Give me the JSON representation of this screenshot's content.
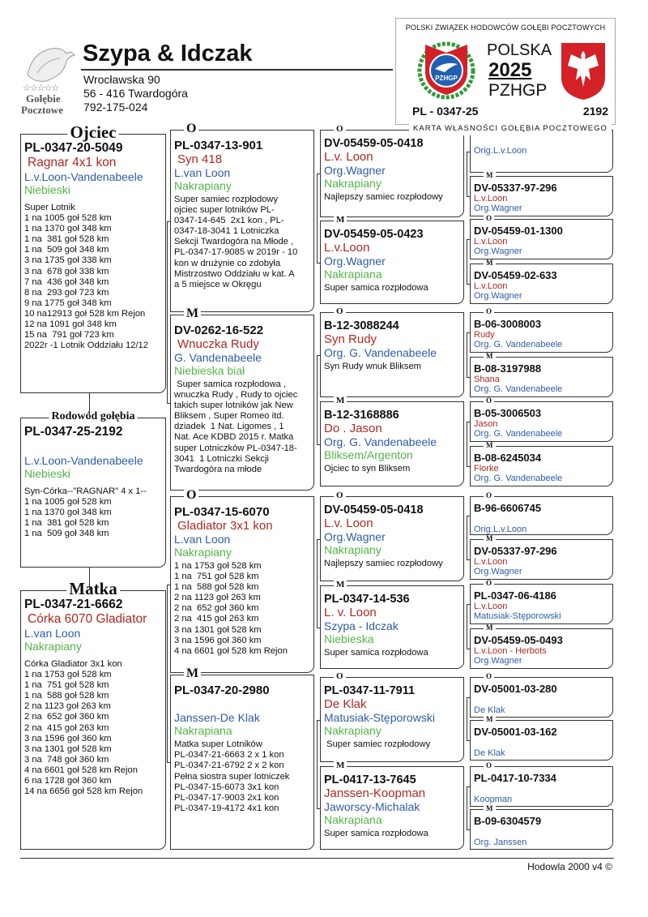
{
  "header": {
    "logo": {
      "stars": "☆☆☆☆☆",
      "line1": "Gołębie",
      "line2": "Pocztowe"
    },
    "title": "Szypa & Idczak",
    "address": [
      "Wrocławska 90",
      "56 - 416  Twardogóra",
      "792-175-024"
    ]
  },
  "card": {
    "org": "POLSKI ZWIĄZEK HODOWCÓW GOŁĘBI POCZTOWYCH",
    "country": "POLSKA",
    "year": "2025",
    "org_short": "PZHGP",
    "emblem": "PZHGP",
    "ring": "PL - 0347-25",
    "number": "2192",
    "caption": "KARTA WŁASNOŚCI GOŁĘBIA POCZTOWEGO"
  },
  "pedigree": [
    {
      "label": "Ojciec",
      "ring": "PL-0347-20-5049",
      "name": "Ragnar  4x1 kon",
      "strain": "L.v.Loon-Vandenabeele",
      "color": "Niebieski",
      "notes": [
        "Super Lotnik",
        "1 na 1005 goł 528 km",
        "1 na 1370 goł 348 km",
        "1 na  381 goł 528 km",
        "1 na  509 goł 348 km",
        "3 na 1735 goł 338 km",
        "3 na  678 goł 338 km",
        "7 na  436 goł 348 km",
        "8 na  293 goł 723 km",
        "9 na 1775 goł 348 km",
        "10 na12913 goł 528 km Rejon",
        "12 na 1091 goł 348 km",
        "15 na  791 goł 723 km",
        "2022r -1 Lotnik Oddziału 12/12"
      ]
    },
    {
      "label": "Rodowód gołębia",
      "ring": "PL-0347-25-2192",
      "strain": "L.v.Loon-Vandenabeele",
      "color": "Niebieski",
      "notes": [
        "Syn-Córka--\"RAGNAR\" 4 x 1--",
        "1 na 1005 goł 528 km",
        "1 na 1370 goł 348 km",
        "1 na  381 goł 528 km",
        "1 na  509 goł 348 km"
      ]
    },
    {
      "label": "Matka",
      "ring": "PL-0347-21-6662",
      "name": "Córka 6070 Gladiator",
      "strain": "L.van Loon",
      "color": "Nakrapiany",
      "notes": [
        "Córka Gladiator 3x1 kon",
        "1 na 1753 goł 528 km",
        "1 na  751 goł 528 km",
        "1 na  588 goł 528 km",
        "2 na 1123 goł 263 km",
        "2 na  652 goł 360 km",
        "2 na  415 goł 263 km",
        "3 na 1596 goł 360 km",
        "3 na 1301 goł 528 km",
        "3 na  748 goł 360 km",
        "4 na 6601 goł 528 km Rejon",
        "6 na 1728 goł 360 km",
        "14 na 6656 goł 528 km Rejon"
      ]
    },
    {
      "label": "O",
      "ring": "PL-0347-13-901",
      "name": "Syn 418",
      "strain": "L.van Loon",
      "color": "Nakrapiany",
      "notes": [
        "Super samiec rozpłodowy",
        "ojciec super lotników PL-",
        "0347-14-645  2x1 kon , PL-",
        "0347-18-3041 1 Lotniczka",
        "Sekcji Twardogóra na Młode ,",
        "PL-0347-17-9085 w 2019r - 10",
        "kon w drużynie co zdobyła",
        "Mistrzostwo Oddziału w kat. A",
        "a 5 miejsce w Okręgu"
      ]
    },
    {
      "label": "M",
      "ring": "DV-0262-16-522",
      "name": "Wnuczka Rudy",
      "strain": "G. Vandenabeele",
      "color": "Niebieska biał",
      "notes": [
        " Super samica rozpłodowa ,",
        "wnuczka Rudy , Rudy to ojciec",
        "takich super lotników jak New",
        "Bliksem , Super Romeo itd.",
        "dziadek  1 Nat. Ligomes , 1",
        "Nat. Ace KDBD 2015 r. Matka",
        "super Lotniczków PL-0347-18-",
        "3041  1 Lotniczki Sekcji",
        "Twardogóra na młode"
      ]
    },
    {
      "label": "O",
      "ring": "PL-0347-15-6070",
      "name": "Gladiator 3x1 kon",
      "strain": "L.van Loon",
      "color": "Nakrapiany",
      "notes": [
        "1 na 1753 goł 528 km",
        "1 na  751 goł 528 km",
        "1 na  588 goł 528 km",
        "2 na 1123 goł 263 km",
        "2 na  652 goł 360 km",
        "2 na  415 goł 263 km",
        "3 na 1301 goł 528 km",
        "3 na 1596 goł 360 km",
        "4 na 6601 goł 528 km Rejon"
      ]
    },
    {
      "label": "M",
      "ring": "PL-0347-20-2980",
      "strain": "Janssen-De Klak",
      "color": "Nakrapiana",
      "notes": [
        "Matka super Lotników",
        "PL-0347-21-6663 2 x 1 kon",
        "PL-0347-21-6792 2 x 2 kon",
        "Pełna siostra super lotniczek",
        "PL-0347-15-6073 3x1 kon",
        "PL-0347-17-9003 2x1 kon",
        "PL-0347-19-4172 4x1 kon"
      ]
    },
    {
      "label": "O",
      "ring": "DV-05459-05-0418",
      "name": "L.v. Loon",
      "strain": "Org.Wagner",
      "color": "Nakrapiany",
      "notes": [
        "Najlepszy samiec rozpłodowy"
      ]
    },
    {
      "label": "M",
      "ring": "DV-05459-05-0423",
      "name": "L.v.Loon",
      "strain": "Org.Wagner",
      "color": "Nakrapiana",
      "notes": [
        "Super samica rozpłodowa"
      ]
    },
    {
      "label": "O",
      "ring": "B-12-3088244",
      "name": "Syn Rudy",
      "strain": "Org. G. Vandenabeele",
      "notes": [
        "Syn Rudy wnuk Bliksem"
      ]
    },
    {
      "label": "M",
      "ring": "B-12-3168886",
      "name": "Do . Jason",
      "strain": "Org. G. Vandenabeele",
      "color": "Bliksem/Argenton",
      "notes": [
        "Ojciec to syn Bliksem"
      ]
    },
    {
      "label": "O",
      "ring": "DV-05459-05-0418",
      "name": "L.v. Loon",
      "strain": "Org.Wagner",
      "color": "Nakrapiany",
      "notes": [
        "Najlepszy samiec rozpłodowy"
      ]
    },
    {
      "label": "M",
      "ring": "PL-0347-14-536",
      "name": "L. v. Loon",
      "strain": "Szypa - Idczak",
      "color": "Niebieska",
      "notes": [
        "Super samica rozpłodowa"
      ]
    },
    {
      "label": "O",
      "ring": "PL-0347-11-7911",
      "name": "De Klak",
      "strain": "Matusiak-Stęporowski",
      "color": "Nakrapiany",
      "notes": [
        " Super samiec rozpłodowy"
      ]
    },
    {
      "label": "M",
      "ring": "PL-0417-13-7645",
      "name": "Janssen-Koopman",
      "strain": "Jaworscy-Michalak",
      "color": "Nakrapiana",
      "notes": [
        "Super samica rozpłodowa"
      ]
    },
    {
      "strain": "Orig.L.v.Loon"
    },
    {
      "label": "M",
      "ring": "DV-05337-97-296",
      "name": "L.v.Loon",
      "strain": "Org.Wagner"
    },
    {
      "label": "O",
      "ring": "DV-05459-01-1300",
      "name": "L.v.Loon",
      "strain": "Org.Wagner"
    },
    {
      "label": "M",
      "ring": "DV-05459-02-633",
      "name": "L.v.Loon",
      "strain": "Org.Wagner"
    },
    {
      "label": "O",
      "ring": "B-06-3008003",
      "name": "Rudy",
      "strain": "Org. G. Vandenabeele"
    },
    {
      "label": "M",
      "ring": "B-08-3197988",
      "name": "Shana",
      "strain": "Org. G. Vandenabeele"
    },
    {
      "label": "O",
      "ring": "B-05-3006503",
      "name": "Jason",
      "strain": "Org. G. Vandenabeele"
    },
    {
      "label": "M",
      "ring": "B-08-6245034",
      "name": "Florke",
      "strain": "Org. G. Vandenabeele"
    },
    {
      "label": "O",
      "ring": "B-96-6606745",
      "strain": "Orig.L.v.Loon"
    },
    {
      "label": "M",
      "ring": "DV-05337-97-296",
      "name": "L.v.Loon",
      "strain": "Org.Wagner"
    },
    {
      "label": "O",
      "ring": "PL-0347-06-4186",
      "name": "L.v.Loon",
      "strain": "Matusiak-Stęporowski"
    },
    {
      "label": "M",
      "ring": "DV-05459-05-0493",
      "name": "L.v.Loon - Herbots",
      "strain": "Org.Wagner"
    },
    {
      "label": "O",
      "ring": "DV-05001-03-280",
      "strain": "De Klak"
    },
    {
      "label": "M",
      "ring": "DV-05001-03-162",
      "strain": "De Klak"
    },
    {
      "label": "O",
      "ring": "PL-0417-10-7334",
      "strain": "Koopman"
    },
    {
      "label": "M",
      "ring": "B-09-6304579",
      "strain": "Org. Janssen"
    }
  ],
  "footer": "Hodowla 2000 v4 ©"
}
